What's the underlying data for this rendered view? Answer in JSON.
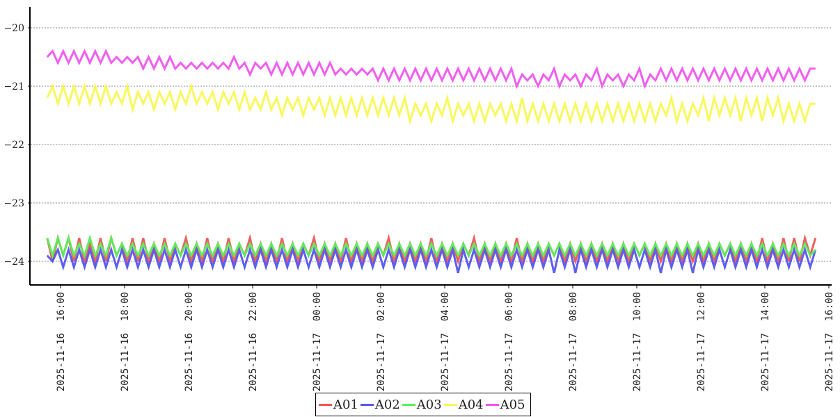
{
  "chart_data": {
    "type": "line",
    "title": "",
    "xlabel": "",
    "ylabel": "",
    "ylim": [
      -24.4,
      -19.65
    ],
    "y_ticks": [
      -20,
      -21,
      -22,
      -23,
      -24
    ],
    "y_tick_labels": [
      "−20",
      "−21",
      "−22",
      "−23",
      "−24"
    ],
    "x_ticks": [
      "2025-11-16 16:00",
      "2025-11-16 18:00",
      "2025-11-16 20:00",
      "2025-11-16 22:00",
      "2025-11-17 00:00",
      "2025-11-17 02:00",
      "2025-11-17 04:00",
      "2025-11-17 06:00",
      "2025-11-17 08:00",
      "2025-11-17 10:00",
      "2025-11-17 12:00",
      "2025-11-17 14:00",
      "2025-11-17 16:00"
    ],
    "x_tick_labels": [
      "2025-11-16  16:00",
      "2025-11-16  18:00",
      "2025-11-16  20:00",
      "2025-11-16  22:00",
      "2025-11-17  00:00",
      "2025-11-17  02:00",
      "2025-11-17  04:00",
      "2025-11-17  06:00",
      "2025-11-17  08:00",
      "2025-11-17  10:00",
      "2025-11-17  12:00",
      "2025-11-17  14:00",
      "2025-11-17  16:00"
    ],
    "x_start": "2025-11-16 15:35",
    "x_step_minutes": 10,
    "grid": "horizontal-dotted",
    "legend_position": "bottom-center",
    "series": [
      {
        "name": "A01",
        "color": "#f15555",
        "values": [
          -23.6,
          -24.0,
          -23.6,
          -23.9,
          -23.6,
          -24.0,
          -23.6,
          -24.0,
          -23.7,
          -24.0,
          -23.6,
          -24.0,
          -23.6,
          -23.9,
          -23.7,
          -24.0,
          -23.6,
          -24.0,
          -23.6,
          -24.0,
          -23.7,
          -24.0,
          -23.6,
          -24.0,
          -23.7,
          -23.9,
          -23.6,
          -24.0,
          -23.7,
          -24.0,
          -23.6,
          -24.0,
          -23.7,
          -24.0,
          -23.6,
          -24.0,
          -23.7,
          -23.9,
          -23.6,
          -24.0,
          -23.7,
          -24.0,
          -23.7,
          -24.0,
          -23.6,
          -24.0,
          -23.7,
          -24.0,
          -23.7,
          -23.9,
          -23.6,
          -24.0,
          -23.7,
          -24.0,
          -23.7,
          -24.0,
          -23.6,
          -24.0,
          -23.7,
          -24.0,
          -23.7,
          -24.0,
          -23.7,
          -23.9,
          -23.6,
          -24.0,
          -23.7,
          -24.0,
          -23.7,
          -24.0,
          -23.7,
          -24.0,
          -23.6,
          -24.0,
          -23.7,
          -24.0,
          -23.7,
          -24.0,
          -23.7,
          -23.9,
          -23.6,
          -24.0,
          -23.7,
          -24.0,
          -23.7,
          -24.0,
          -23.7,
          -24.0,
          -23.6,
          -24.0,
          -23.7,
          -24.0,
          -23.7,
          -24.0,
          -23.7,
          -23.9,
          -23.7,
          -24.0,
          -23.7,
          -24.0,
          -23.7,
          -24.0,
          -23.7,
          -24.0,
          -23.7,
          -24.0,
          -23.7,
          -24.0,
          -23.7,
          -24.0,
          -23.7,
          -23.9,
          -23.7,
          -24.0,
          -23.7,
          -24.0,
          -23.7,
          -24.0,
          -23.7,
          -24.0,
          -23.7,
          -24.0,
          -23.7,
          -24.0,
          -23.7,
          -24.0,
          -23.7,
          -23.9,
          -23.7,
          -24.0,
          -23.7,
          -24.0,
          -23.7,
          -24.0,
          -23.6,
          -24.0,
          -23.7,
          -24.0,
          -23.6,
          -24.0,
          -23.6,
          -24.0,
          -23.6,
          -23.9,
          -23.6
        ]
      },
      {
        "name": "A02",
        "color": "#5555f1",
        "values": [
          -23.9,
          -24.0,
          -23.8,
          -24.1,
          -23.8,
          -24.1,
          -23.8,
          -24.1,
          -23.8,
          -24.1,
          -23.8,
          -24.1,
          -23.8,
          -24.1,
          -23.8,
          -24.1,
          -23.8,
          -24.1,
          -23.8,
          -24.1,
          -23.8,
          -24.1,
          -23.8,
          -24.1,
          -23.8,
          -24.1,
          -23.8,
          -24.1,
          -23.8,
          -24.1,
          -23.8,
          -24.1,
          -23.8,
          -24.1,
          -23.8,
          -24.1,
          -23.8,
          -24.1,
          -23.8,
          -24.1,
          -23.8,
          -24.1,
          -23.8,
          -24.1,
          -23.8,
          -24.1,
          -23.8,
          -24.1,
          -23.8,
          -24.1,
          -23.8,
          -24.1,
          -23.8,
          -24.1,
          -23.8,
          -24.1,
          -23.8,
          -24.1,
          -23.8,
          -24.1,
          -23.8,
          -24.1,
          -23.8,
          -24.1,
          -23.8,
          -24.1,
          -23.8,
          -24.1,
          -23.8,
          -24.1,
          -23.8,
          -24.1,
          -23.8,
          -24.1,
          -23.8,
          -24.1,
          -23.8,
          -24.2,
          -23.8,
          -24.1,
          -23.8,
          -24.1,
          -23.8,
          -24.1,
          -23.8,
          -24.1,
          -23.8,
          -24.1,
          -23.8,
          -24.1,
          -23.8,
          -24.1,
          -23.8,
          -24.1,
          -23.8,
          -24.2,
          -23.8,
          -24.1,
          -23.8,
          -24.2,
          -23.8,
          -24.1,
          -23.8,
          -24.1,
          -23.8,
          -24.1,
          -23.8,
          -24.1,
          -23.8,
          -24.1,
          -23.8,
          -24.1,
          -23.8,
          -24.1,
          -23.8,
          -24.2,
          -23.8,
          -24.1,
          -23.8,
          -24.1,
          -23.8,
          -24.2,
          -23.8,
          -24.1,
          -23.8,
          -24.1,
          -23.8,
          -24.1,
          -23.8,
          -24.1,
          -23.8,
          -24.1,
          -23.8,
          -24.1,
          -23.8,
          -24.1,
          -23.8,
          -24.1,
          -23.8,
          -24.1,
          -23.8,
          -24.1,
          -23.8,
          -24.1,
          -23.8
        ]
      },
      {
        "name": "A03",
        "color": "#55f155",
        "values": [
          -23.6,
          -23.9,
          -23.6,
          -23.9,
          -23.6,
          -23.9,
          -23.7,
          -23.9,
          -23.6,
          -23.9,
          -23.7,
          -23.9,
          -23.6,
          -23.9,
          -23.7,
          -23.9,
          -23.7,
          -23.9,
          -23.7,
          -23.9,
          -23.7,
          -23.9,
          -23.7,
          -23.9,
          -23.7,
          -23.9,
          -23.7,
          -23.9,
          -23.7,
          -23.9,
          -23.7,
          -23.9,
          -23.7,
          -23.9,
          -23.7,
          -23.9,
          -23.7,
          -23.9,
          -23.7,
          -23.9,
          -23.7,
          -23.9,
          -23.7,
          -23.9,
          -23.7,
          -23.9,
          -23.7,
          -23.9,
          -23.7,
          -23.9,
          -23.7,
          -23.9,
          -23.7,
          -23.9,
          -23.7,
          -23.9,
          -23.7,
          -23.9,
          -23.7,
          -23.9,
          -23.7,
          -23.9,
          -23.7,
          -23.9,
          -23.7,
          -23.9,
          -23.7,
          -23.9,
          -23.7,
          -23.9,
          -23.7,
          -23.9,
          -23.7,
          -23.9,
          -23.7,
          -23.9,
          -23.7,
          -23.9,
          -23.7,
          -23.9,
          -23.7,
          -23.9,
          -23.7,
          -23.9,
          -23.7,
          -23.9,
          -23.7,
          -23.9,
          -23.7,
          -23.9,
          -23.7,
          -23.9,
          -23.7,
          -23.9,
          -23.7,
          -23.9,
          -23.7,
          -23.9,
          -23.7,
          -23.9,
          -23.7,
          -23.9,
          -23.7,
          -23.9,
          -23.7,
          -23.9,
          -23.7,
          -23.9,
          -23.7,
          -23.9,
          -23.7,
          -23.9,
          -23.7,
          -23.9,
          -23.7,
          -23.9,
          -23.7,
          -23.9,
          -23.7,
          -23.9,
          -23.7,
          -23.9,
          -23.7,
          -23.9,
          -23.7,
          -23.9,
          -23.7,
          -23.9,
          -23.7,
          -23.9,
          -23.7,
          -23.9,
          -23.7,
          -23.9,
          -23.7,
          -23.9,
          -23.7,
          -23.9,
          -23.7,
          -23.9,
          -23.7,
          -23.9,
          -23.7,
          -23.9,
          -23.8
        ]
      },
      {
        "name": "A04",
        "color": "#f8f855",
        "values": [
          -21.2,
          -21.0,
          -21.3,
          -21.0,
          -21.3,
          -21.0,
          -21.3,
          -21.0,
          -21.3,
          -21.0,
          -21.3,
          -21.0,
          -21.3,
          -21.1,
          -21.3,
          -21.0,
          -21.4,
          -21.1,
          -21.3,
          -21.1,
          -21.4,
          -21.1,
          -21.3,
          -21.1,
          -21.4,
          -21.1,
          -21.3,
          -21.0,
          -21.3,
          -21.1,
          -21.3,
          -21.1,
          -21.4,
          -21.1,
          -21.3,
          -21.1,
          -21.4,
          -21.1,
          -21.4,
          -21.2,
          -21.4,
          -21.1,
          -21.4,
          -21.2,
          -21.5,
          -21.2,
          -21.4,
          -21.2,
          -21.5,
          -21.2,
          -21.4,
          -21.2,
          -21.5,
          -21.2,
          -21.5,
          -21.2,
          -21.5,
          -21.2,
          -21.5,
          -21.2,
          -21.5,
          -21.2,
          -21.5,
          -21.2,
          -21.5,
          -21.2,
          -21.5,
          -21.2,
          -21.6,
          -21.3,
          -21.5,
          -21.3,
          -21.6,
          -21.3,
          -21.5,
          -21.2,
          -21.6,
          -21.3,
          -21.5,
          -21.3,
          -21.6,
          -21.3,
          -21.6,
          -21.3,
          -21.5,
          -21.3,
          -21.6,
          -21.3,
          -21.6,
          -21.2,
          -21.6,
          -21.3,
          -21.6,
          -21.3,
          -21.6,
          -21.3,
          -21.6,
          -21.3,
          -21.6,
          -21.3,
          -21.6,
          -21.3,
          -21.6,
          -21.3,
          -21.6,
          -21.3,
          -21.6,
          -21.3,
          -21.6,
          -21.3,
          -21.6,
          -21.3,
          -21.6,
          -21.3,
          -21.6,
          -21.3,
          -21.5,
          -21.2,
          -21.6,
          -21.3,
          -21.6,
          -21.3,
          -21.5,
          -21.2,
          -21.6,
          -21.2,
          -21.5,
          -21.2,
          -21.5,
          -21.2,
          -21.6,
          -21.2,
          -21.5,
          -21.2,
          -21.6,
          -21.2,
          -21.5,
          -21.2,
          -21.6,
          -21.3,
          -21.6,
          -21.3,
          -21.6,
          -21.3,
          -21.3
        ]
      },
      {
        "name": "A05",
        "color": "#f155f1",
        "values": [
          -20.5,
          -20.4,
          -20.6,
          -20.4,
          -20.6,
          -20.4,
          -20.6,
          -20.4,
          -20.6,
          -20.4,
          -20.6,
          -20.4,
          -20.6,
          -20.5,
          -20.6,
          -20.5,
          -20.6,
          -20.5,
          -20.7,
          -20.5,
          -20.7,
          -20.5,
          -20.7,
          -20.5,
          -20.7,
          -20.6,
          -20.7,
          -20.6,
          -20.7,
          -20.6,
          -20.7,
          -20.6,
          -20.7,
          -20.6,
          -20.7,
          -20.5,
          -20.7,
          -20.6,
          -20.8,
          -20.6,
          -20.7,
          -20.6,
          -20.8,
          -20.6,
          -20.8,
          -20.6,
          -20.8,
          -20.6,
          -20.8,
          -20.6,
          -20.8,
          -20.6,
          -20.8,
          -20.6,
          -20.8,
          -20.7,
          -20.8,
          -20.7,
          -20.8,
          -20.7,
          -20.8,
          -20.7,
          -20.9,
          -20.7,
          -20.9,
          -20.7,
          -20.9,
          -20.7,
          -20.9,
          -20.7,
          -20.9,
          -20.7,
          -20.9,
          -20.7,
          -20.9,
          -20.7,
          -20.9,
          -20.7,
          -20.9,
          -20.7,
          -20.9,
          -20.7,
          -20.9,
          -20.7,
          -20.9,
          -20.7,
          -20.9,
          -20.7,
          -21.0,
          -20.8,
          -20.9,
          -20.8,
          -21.0,
          -20.8,
          -20.9,
          -20.7,
          -21.0,
          -20.8,
          -20.9,
          -20.8,
          -21.0,
          -20.8,
          -20.9,
          -20.7,
          -21.0,
          -20.8,
          -20.9,
          -20.8,
          -21.0,
          -20.8,
          -20.9,
          -20.7,
          -21.0,
          -20.8,
          -20.9,
          -20.7,
          -20.9,
          -20.7,
          -20.9,
          -20.7,
          -20.9,
          -20.7,
          -20.9,
          -20.7,
          -20.9,
          -20.7,
          -20.9,
          -20.7,
          -20.9,
          -20.7,
          -20.9,
          -20.7,
          -20.9,
          -20.7,
          -20.9,
          -20.7,
          -20.9,
          -20.7,
          -20.9,
          -20.7,
          -20.9,
          -20.7,
          -20.9,
          -20.7,
          -20.7
        ]
      }
    ]
  }
}
